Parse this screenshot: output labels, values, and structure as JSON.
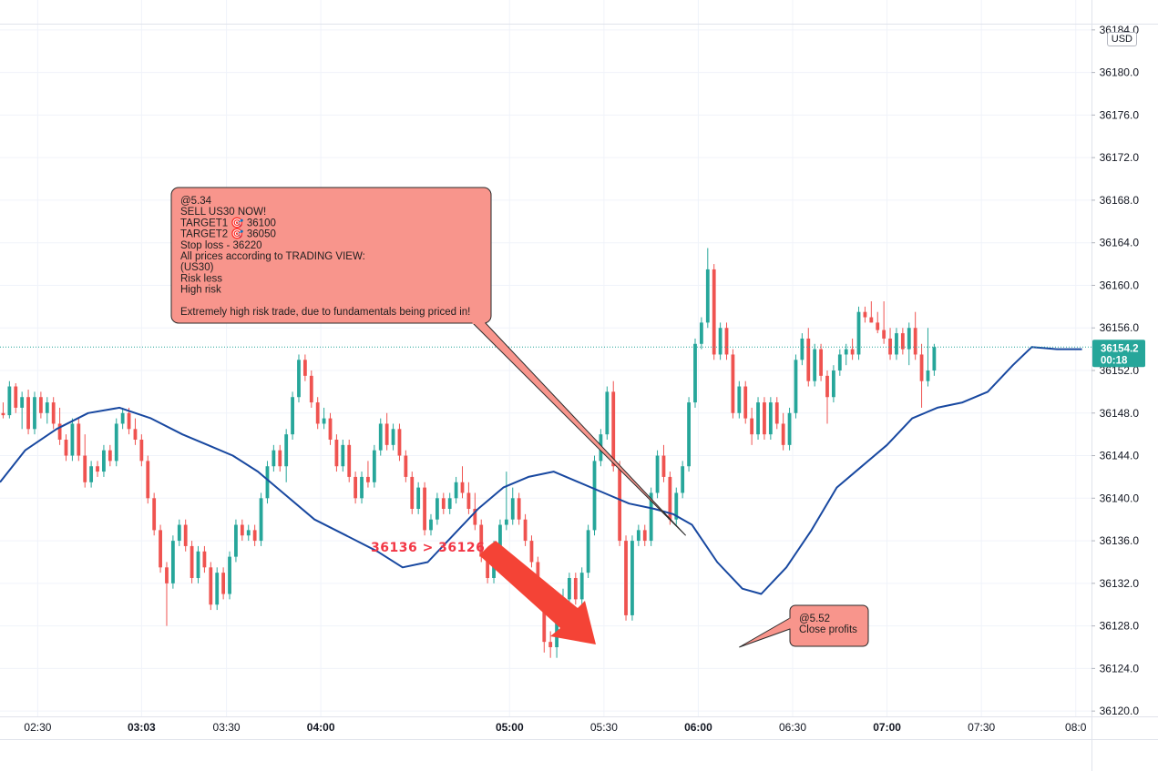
{
  "chart_data": {
    "type": "candlestick",
    "symbol": "US30",
    "currency": "USD",
    "y_axis": {
      "min": 36119.5,
      "max": 36184.5,
      "ticks": [
        36120.0,
        36124.0,
        36128.0,
        36132.0,
        36136.0,
        36140.0,
        36144.0,
        36148.0,
        36152.0,
        36156.0,
        36160.0,
        36164.0,
        36168.0,
        36172.0,
        36176.0,
        36180.0,
        36184.0
      ],
      "tick_labels": [
        "36120.0",
        "36124.0",
        "36128.0",
        "36132.0",
        "36136.0",
        "36140.0",
        "36144.0",
        "36148.0",
        "36152.0",
        "36156.0",
        "36160.0",
        "36164.0",
        "36168.0",
        "36172.0",
        "36176.0",
        "36180.0",
        "36184.0"
      ]
    },
    "x_axis": {
      "minutes_range": [
        138,
        485
      ],
      "ticks": [
        150,
        183,
        210,
        240,
        300,
        330,
        360,
        390,
        420,
        450,
        480
      ],
      "tick_labels": [
        "02:30",
        "03:03",
        "03:30",
        "04:00",
        "05:00",
        "05:30",
        "06:00",
        "06:30",
        "07:00",
        "07:30",
        "08:0"
      ],
      "bold_ticks": [
        "03:03",
        "04:00",
        "05:00",
        "06:00",
        "07:00"
      ]
    },
    "grid": true,
    "colors": {
      "up": "#26a69a",
      "down": "#ef5350",
      "ma": "#1848a0",
      "last_price": "#26a69a",
      "callout": "#f8958c",
      "arrow": "#f44336"
    },
    "last_price": {
      "value": 36154.2,
      "label": "36154.2",
      "countdown": "00:18"
    },
    "candles": [
      [
        36148.0,
        36149.0,
        36147.5,
        36147.8
      ],
      [
        36147.8,
        36151.0,
        36147.5,
        36150.5
      ],
      [
        36150.5,
        36150.8,
        36148.0,
        36148.5
      ],
      [
        36148.5,
        36150.0,
        36146.5,
        36149.5
      ],
      [
        36149.5,
        36150.2,
        36146.0,
        36146.5
      ],
      [
        36146.5,
        36150.0,
        36146.0,
        36149.5
      ],
      [
        36149.5,
        36150.0,
        36147.5,
        36148.0
      ],
      [
        36148.0,
        36149.5,
        36147.0,
        36149.0
      ],
      [
        36149.0,
        36149.5,
        36146.5,
        36147.0
      ],
      [
        36147.0,
        36148.5,
        36145.0,
        36145.5
      ],
      [
        36145.5,
        36146.0,
        36143.5,
        36144.0
      ],
      [
        36144.0,
        36147.5,
        36143.5,
        36147.0
      ],
      [
        36147.0,
        36147.5,
        36143.5,
        36144.0
      ],
      [
        36144.0,
        36146.0,
        36141.0,
        36141.5
      ],
      [
        36141.5,
        36143.5,
        36141.0,
        36143.0
      ],
      [
        36143.0,
        36143.5,
        36142.0,
        36142.5
      ],
      [
        36142.5,
        36145.0,
        36142.0,
        36144.5
      ],
      [
        36144.5,
        36145.0,
        36143.0,
        36143.5
      ],
      [
        36143.5,
        36147.5,
        36143.0,
        36147.0
      ],
      [
        36147.0,
        36148.5,
        36146.5,
        36148.0
      ],
      [
        36148.0,
        36148.5,
        36146.0,
        36146.5
      ],
      [
        36146.5,
        36147.5,
        36145.0,
        36145.5
      ],
      [
        36145.5,
        36146.0,
        36143.0,
        36143.5
      ],
      [
        36143.5,
        36144.0,
        36139.5,
        36140.0
      ],
      [
        36140.0,
        36140.5,
        36136.5,
        36137.0
      ],
      [
        36137.0,
        36137.5,
        36133.0,
        36133.5
      ],
      [
        36133.5,
        36134.0,
        36128.0,
        36132.0
      ],
      [
        36132.0,
        36136.5,
        36131.5,
        36136.0
      ],
      [
        36136.0,
        36138.0,
        36135.5,
        36137.5
      ],
      [
        36137.5,
        36138.0,
        36135.0,
        36135.5
      ],
      [
        36135.5,
        36136.0,
        36132.0,
        36132.5
      ],
      [
        36132.5,
        36135.5,
        36132.0,
        36135.0
      ],
      [
        36135.0,
        36135.5,
        36133.0,
        36133.5
      ],
      [
        36133.5,
        36134.0,
        36129.5,
        36130.0
      ],
      [
        36130.0,
        36133.5,
        36129.5,
        36133.0
      ],
      [
        36133.0,
        36133.5,
        36130.5,
        36131.0
      ],
      [
        36131.0,
        36135.0,
        36130.5,
        36134.5
      ],
      [
        36134.5,
        36138.0,
        36134.0,
        36137.5
      ],
      [
        36137.5,
        36138.0,
        36136.0,
        36136.5
      ],
      [
        36136.5,
        36137.5,
        36136.0,
        36137.0
      ],
      [
        36137.0,
        36137.5,
        36135.5,
        36136.0
      ],
      [
        36136.0,
        36140.5,
        36135.5,
        36140.0
      ],
      [
        36140.0,
        36143.5,
        36139.5,
        36143.0
      ],
      [
        36143.0,
        36145.0,
        36142.5,
        36144.5
      ],
      [
        36144.5,
        36145.0,
        36142.5,
        36143.0
      ],
      [
        36143.0,
        36146.5,
        36141.5,
        36146.0
      ],
      [
        36146.0,
        36150.0,
        36145.5,
        36149.5
      ],
      [
        36149.5,
        36153.5,
        36149.0,
        36153.0
      ],
      [
        36153.0,
        36153.5,
        36151.0,
        36151.5
      ],
      [
        36151.5,
        36152.0,
        36148.5,
        36149.0
      ],
      [
        36149.0,
        36149.5,
        36146.5,
        36147.0
      ],
      [
        36147.0,
        36148.5,
        36146.5,
        36147.5
      ],
      [
        36147.5,
        36148.0,
        36145.0,
        36145.5
      ],
      [
        36145.5,
        36146.0,
        36142.5,
        36143.0
      ],
      [
        36143.0,
        36145.5,
        36142.5,
        36145.0
      ],
      [
        36145.0,
        36145.5,
        36141.5,
        36142.0
      ],
      [
        36142.0,
        36142.5,
        36139.5,
        36140.0
      ],
      [
        36140.0,
        36142.5,
        36139.5,
        36142.0
      ],
      [
        36142.0,
        36143.5,
        36141.0,
        36141.5
      ],
      [
        36141.5,
        36145.0,
        36141.0,
        36144.5
      ],
      [
        36144.5,
        36147.5,
        36144.0,
        36147.0
      ],
      [
        36147.0,
        36148.0,
        36144.5,
        36145.0
      ],
      [
        36145.0,
        36147.0,
        36144.5,
        36146.5
      ],
      [
        36146.5,
        36147.0,
        36143.5,
        36144.0
      ],
      [
        36144.0,
        36144.5,
        36141.5,
        36142.0
      ],
      [
        36142.0,
        36142.5,
        36138.5,
        36139.0
      ],
      [
        36139.0,
        36141.5,
        36138.5,
        36141.0
      ],
      [
        36141.0,
        36141.5,
        36136.5,
        36137.0
      ],
      [
        36137.0,
        36138.5,
        36136.5,
        36138.0
      ],
      [
        36138.0,
        36140.5,
        36137.5,
        36140.0
      ],
      [
        36140.0,
        36140.5,
        36138.5,
        36139.0
      ],
      [
        36139.0,
        36140.5,
        36138.5,
        36140.0
      ],
      [
        36140.0,
        36142.0,
        36139.5,
        36141.5
      ],
      [
        36141.5,
        36143.0,
        36140.0,
        36140.5
      ],
      [
        36140.5,
        36141.5,
        36138.5,
        36139.0
      ],
      [
        36139.0,
        36140.5,
        36137.0,
        36137.5
      ],
      [
        36137.5,
        36138.0,
        36134.0,
        36134.5
      ],
      [
        36134.5,
        36135.0,
        36132.0,
        36132.5
      ],
      [
        36132.5,
        36136.0,
        36132.0,
        36135.5
      ],
      [
        36135.5,
        36138.0,
        36135.0,
        36137.5
      ],
      [
        36137.5,
        36142.5,
        36137.0,
        36138.0
      ],
      [
        36138.0,
        36141.0,
        36137.5,
        36140.0
      ],
      [
        36140.0,
        36140.5,
        36137.5,
        36138.0
      ],
      [
        36138.0,
        36138.5,
        36135.5,
        36136.0
      ],
      [
        36136.0,
        36136.5,
        36133.5,
        36134.0
      ],
      [
        36134.0,
        36134.5,
        36130.5,
        36131.0
      ],
      [
        36131.0,
        36131.5,
        36125.5,
        36126.5
      ],
      [
        36126.5,
        36127.5,
        36125.0,
        36126.0
      ],
      [
        36126.0,
        36130.5,
        36125.0,
        36130.0
      ],
      [
        36130.0,
        36131.5,
        36129.0,
        36130.5
      ],
      [
        36130.5,
        36133.0,
        36129.5,
        36132.5
      ],
      [
        36132.5,
        36133.0,
        36130.0,
        36130.5
      ],
      [
        36130.5,
        36133.5,
        36130.0,
        36133.0
      ],
      [
        36133.0,
        36137.5,
        36132.5,
        36137.0
      ],
      [
        36137.0,
        36144.0,
        36136.5,
        36143.5
      ],
      [
        36143.5,
        36146.5,
        36143.0,
        36146.0
      ],
      [
        36146.0,
        36150.5,
        36145.5,
        36150.0
      ],
      [
        36150.0,
        36151.0,
        36142.5,
        36143.0
      ],
      [
        36143.0,
        36143.5,
        36135.5,
        36136.0
      ],
      [
        36136.0,
        36136.5,
        36128.5,
        36129.0
      ],
      [
        36129.0,
        36136.5,
        36128.5,
        36136.0
      ],
      [
        36136.0,
        36137.5,
        36135.5,
        36137.0
      ],
      [
        36137.0,
        36137.5,
        36135.5,
        36136.0
      ],
      [
        36136.0,
        36141.0,
        36135.5,
        36140.5
      ],
      [
        36140.5,
        36144.5,
        36140.0,
        36144.0
      ],
      [
        36144.0,
        36145.0,
        36141.5,
        36142.0
      ],
      [
        36142.0,
        36142.5,
        36137.5,
        36138.0
      ],
      [
        36138.0,
        36141.0,
        36137.5,
        36140.5
      ],
      [
        36140.5,
        36143.5,
        36140.0,
        36143.0
      ],
      [
        36143.0,
        36149.5,
        36142.5,
        36149.0
      ],
      [
        36149.0,
        36155.0,
        36148.5,
        36154.5
      ],
      [
        36154.5,
        36157.0,
        36154.0,
        36156.5
      ],
      [
        36156.5,
        36163.5,
        36156.0,
        36161.5
      ],
      [
        36161.5,
        36162.0,
        36153.0,
        36153.5
      ],
      [
        36153.5,
        36156.5,
        36153.0,
        36156.0
      ],
      [
        36156.0,
        36156.5,
        36153.0,
        36153.5
      ],
      [
        36153.5,
        36154.0,
        36147.5,
        36148.0
      ],
      [
        36148.0,
        36151.0,
        36147.5,
        36150.5
      ],
      [
        36150.5,
        36151.0,
        36147.0,
        36147.5
      ],
      [
        36147.5,
        36148.5,
        36145.0,
        36146.0
      ],
      [
        36146.0,
        36149.5,
        36145.5,
        36149.0
      ],
      [
        36149.0,
        36149.5,
        36145.5,
        36146.0
      ],
      [
        36146.0,
        36149.5,
        36145.5,
        36149.0
      ],
      [
        36149.0,
        36149.5,
        36146.5,
        36147.0
      ],
      [
        36147.0,
        36148.0,
        36144.5,
        36145.0
      ],
      [
        36145.0,
        36148.5,
        36144.5,
        36148.0
      ],
      [
        36148.0,
        36153.5,
        36147.5,
        36153.0
      ],
      [
        36153.0,
        36155.5,
        36152.5,
        36155.0
      ],
      [
        36155.0,
        36156.0,
        36150.5,
        36151.0
      ],
      [
        36151.0,
        36154.5,
        36150.5,
        36154.0
      ],
      [
        36154.0,
        36154.5,
        36151.0,
        36151.5
      ],
      [
        36151.5,
        36152.0,
        36147.0,
        36149.5
      ],
      [
        36149.5,
        36152.5,
        36149.0,
        36152.0
      ],
      [
        36152.0,
        36154.0,
        36151.5,
        36153.5
      ],
      [
        36153.5,
        36154.5,
        36152.5,
        36154.0
      ],
      [
        36154.0,
        36155.0,
        36153.0,
        36153.5
      ],
      [
        36153.5,
        36158.0,
        36153.0,
        36157.5
      ],
      [
        36157.5,
        36158.0,
        36156.5,
        36157.0
      ],
      [
        36157.0,
        36158.5,
        36156.5,
        36156.5
      ],
      [
        36156.5,
        36157.5,
        36155.5,
        36155.8
      ],
      [
        36155.8,
        36158.5,
        36154.5,
        36155.0
      ],
      [
        36155.0,
        36156.0,
        36153.0,
        36153.5
      ],
      [
        36153.5,
        36156.0,
        36153.0,
        36155.5
      ],
      [
        36155.5,
        36156.0,
        36153.5,
        36154.0
      ],
      [
        36154.0,
        36156.5,
        36152.5,
        36156.0
      ],
      [
        36156.0,
        36157.5,
        36153.0,
        36153.5
      ],
      [
        36153.5,
        36154.5,
        36148.5,
        36151.0
      ],
      [
        36151.0,
        36156.0,
        36150.5,
        36152.0
      ],
      [
        36152.0,
        36154.5,
        36151.5,
        36154.2
      ]
    ],
    "moving_average": [
      [
        138,
        36141.5
      ],
      [
        146,
        36144.5
      ],
      [
        156,
        36146.5
      ],
      [
        166,
        36148.0
      ],
      [
        176,
        36148.5
      ],
      [
        186,
        36147.5
      ],
      [
        196,
        36146.0
      ],
      [
        204,
        36145.0
      ],
      [
        212,
        36144.0
      ],
      [
        220,
        36142.5
      ],
      [
        228,
        36140.5
      ],
      [
        238,
        36138.0
      ],
      [
        248,
        36136.5
      ],
      [
        258,
        36135.0
      ],
      [
        266,
        36133.5
      ],
      [
        274,
        36134.0
      ],
      [
        282,
        36136.5
      ],
      [
        290,
        36139.0
      ],
      [
        298,
        36141.0
      ],
      [
        306,
        36142.0
      ],
      [
        314,
        36142.5
      ],
      [
        322,
        36141.5
      ],
      [
        330,
        36140.5
      ],
      [
        338,
        36139.5
      ],
      [
        346,
        36139.0
      ],
      [
        352,
        36138.5
      ],
      [
        358,
        36137.5
      ],
      [
        366,
        36134.0
      ],
      [
        374,
        36131.5
      ],
      [
        380,
        36131.0
      ],
      [
        388,
        36133.5
      ],
      [
        396,
        36137.0
      ],
      [
        404,
        36141.0
      ],
      [
        412,
        36143.0
      ],
      [
        420,
        36145.0
      ],
      [
        428,
        36147.5
      ],
      [
        436,
        36148.5
      ],
      [
        444,
        36149.0
      ],
      [
        452,
        36150.0
      ],
      [
        460,
        36152.5
      ],
      [
        466,
        36154.2
      ],
      [
        474,
        36154.0
      ],
      [
        482,
        36154.0
      ]
    ]
  },
  "annotations": {
    "sell_callout": {
      "lines": [
        "@5.34",
        "SELL US30 NOW!",
        "TARGET1 🎯 36100",
        "TARGET2 🎯 36050",
        "Stop loss  - 36220",
        "All prices according to TRADING VIEW:",
        "(US30)",
        "Risk less",
        "High risk",
        "",
        "Extremely high risk trade, due to fundamentals being priced in!"
      ],
      "point": {
        "minute": 356,
        "price": 36136.5
      }
    },
    "close_callout": {
      "lines": [
        "@5.52",
        "Close profits"
      ],
      "point": {
        "minute": 373,
        "price": 36126.0
      }
    },
    "move_label": "36136 > 36126"
  },
  "ui": {
    "currency_label": "USD"
  }
}
